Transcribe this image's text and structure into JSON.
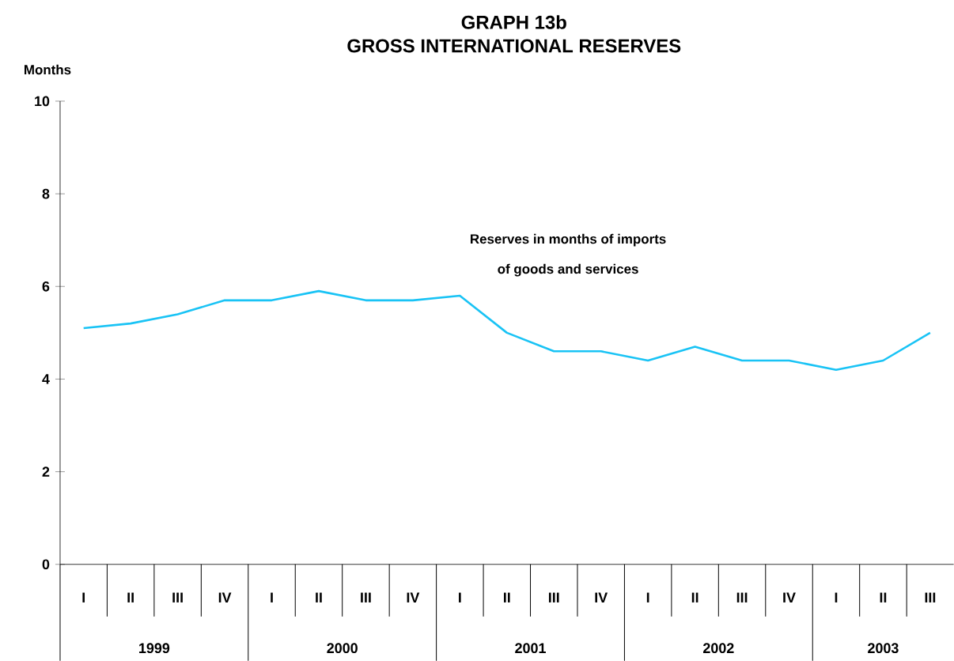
{
  "chart_data": {
    "type": "line",
    "title": "GRAPH 13b",
    "subtitle": "GROSS INTERNATIONAL RESERVES",
    "ylabel": "Months",
    "categories": [
      "I",
      "II",
      "III",
      "IV",
      "I",
      "II",
      "III",
      "IV",
      "I",
      "II",
      "III",
      "IV",
      "I",
      "II",
      "III",
      "IV",
      "I",
      "II",
      "III"
    ],
    "series": [
      {
        "color": "#19c3f5",
        "values": [
          5.1,
          5.2,
          5.4,
          5.7,
          5.7,
          5.9,
          5.7,
          5.7,
          5.8,
          5.0,
          4.6,
          4.6,
          4.4,
          4.7,
          4.4,
          4.4,
          4.2,
          4.4,
          5.0
        ]
      }
    ],
    "ylim": [
      0,
      10
    ],
    "yticks": [
      0,
      2,
      4,
      6,
      8,
      10
    ],
    "grid": false,
    "marker": "none",
    "line_style": "solid",
    "annotations": [
      "Reserves in months of imports",
      "of goods and services",
      "1999",
      "2000",
      "2001",
      "2002",
      "2003"
    ]
  }
}
